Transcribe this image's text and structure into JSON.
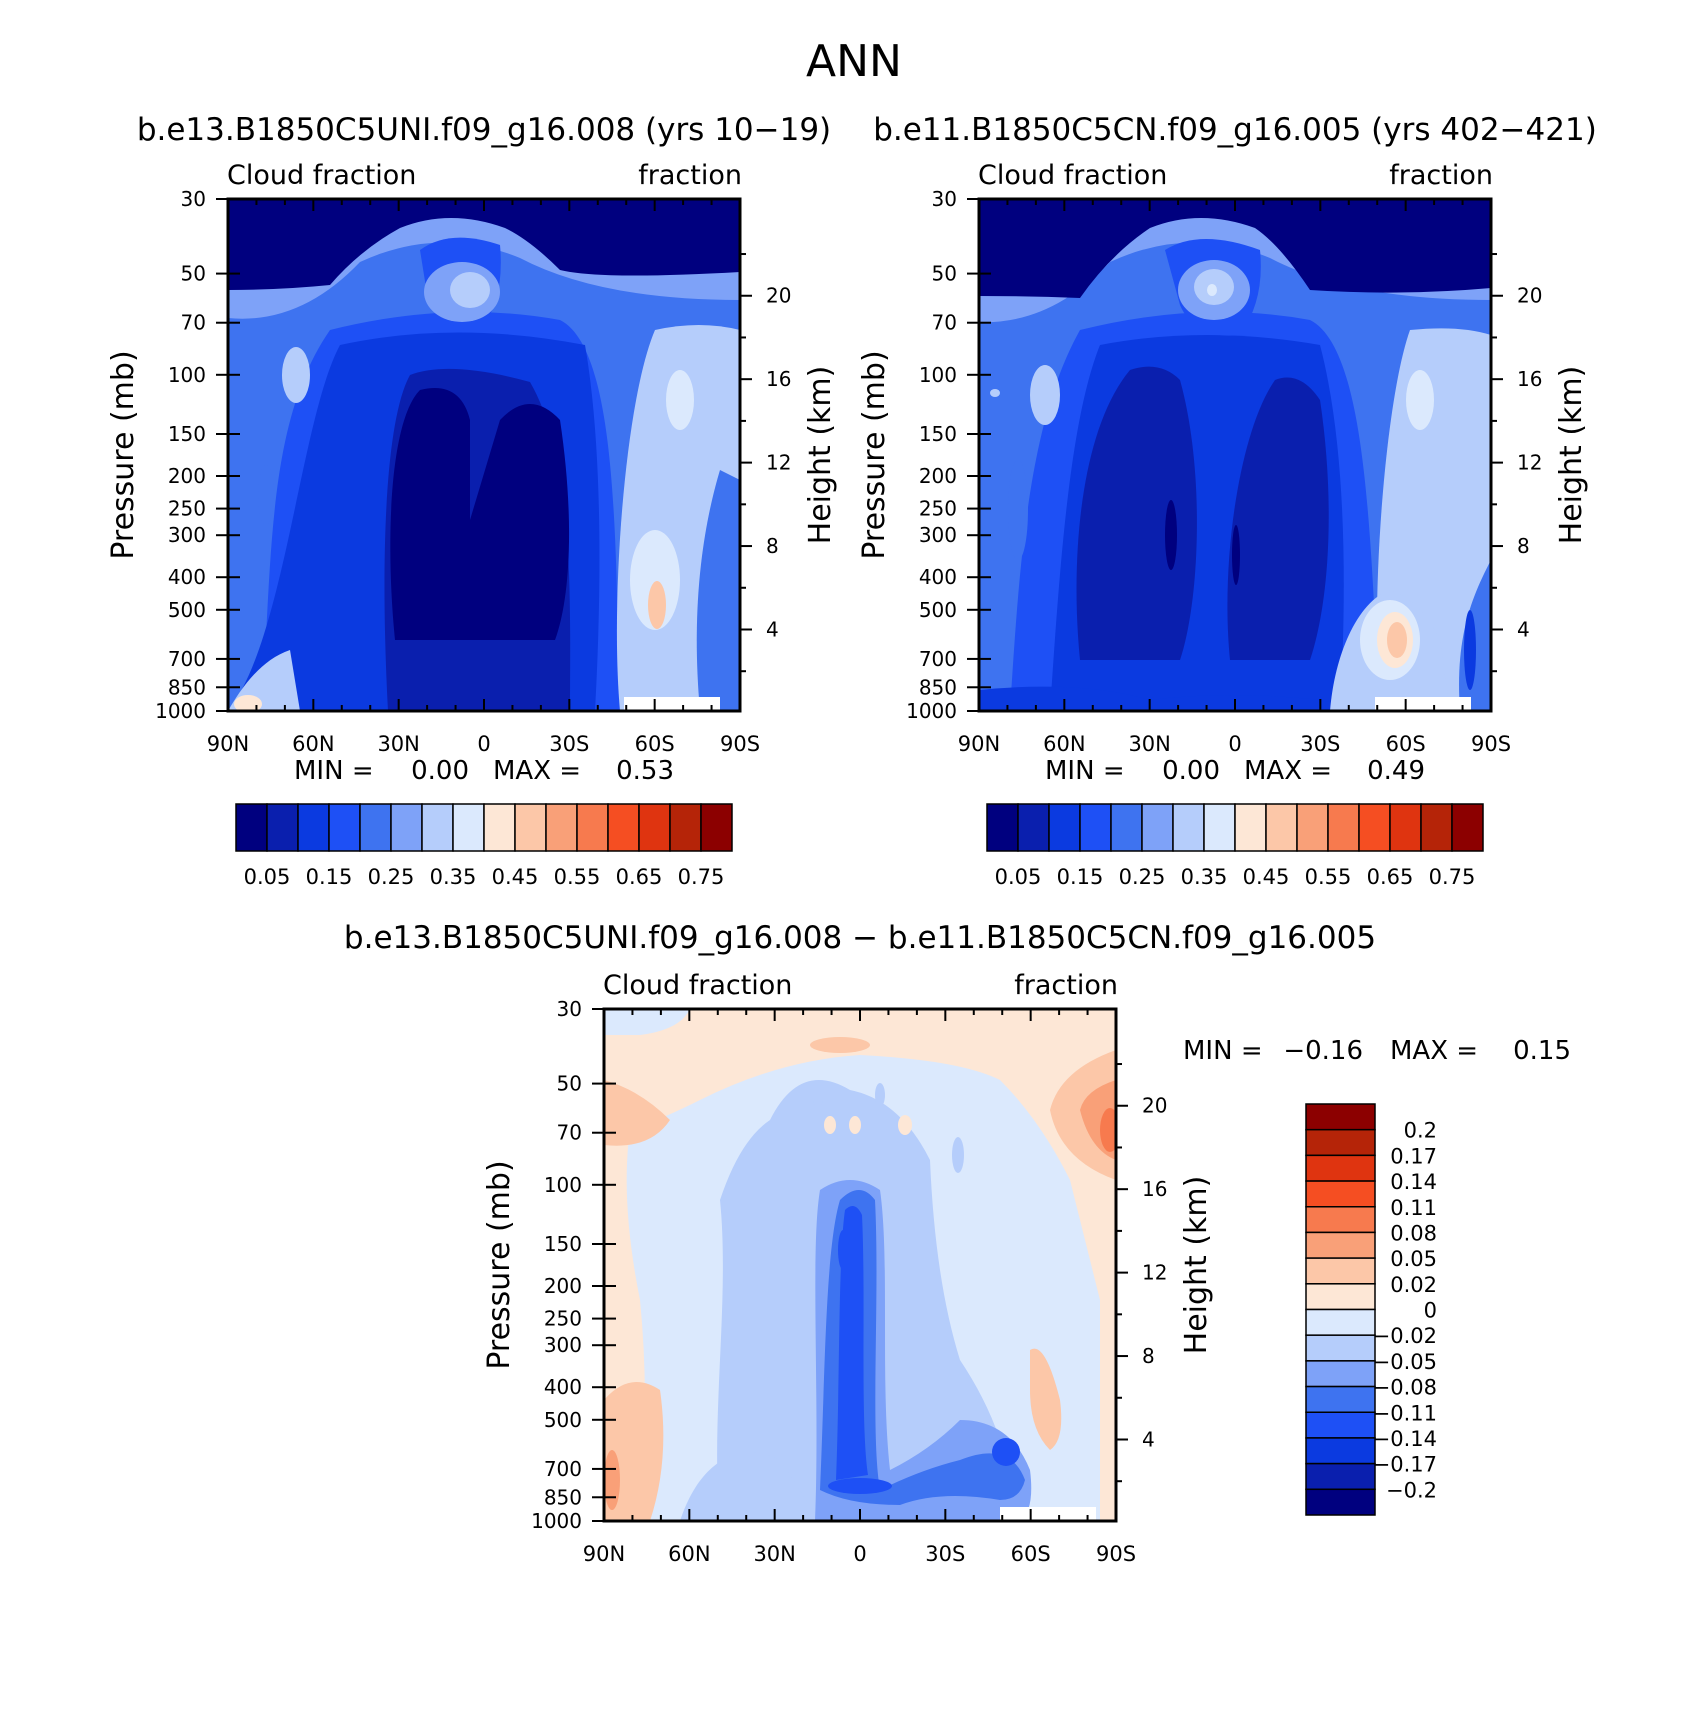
{
  "figure_title": "ANN",
  "chart_data": [
    {
      "type": "heatmap",
      "title": "b.e13.B1850C5UNI.f09_g16.008 (yrs 10-19)",
      "left_label": "Cloud fraction",
      "right_label": "fraction",
      "ylabel": "Pressure (mb)",
      "ylabel_right": "Height (km)",
      "x_ticks": [
        "90N",
        "60N",
        "30N",
        "0",
        "30S",
        "60S",
        "90S"
      ],
      "y_ticks": [
        "30",
        "50",
        "70",
        "100",
        "150",
        "200",
        "250",
        "300",
        "400",
        "500",
        "700",
        "850",
        "1000"
      ],
      "height_ticks": [
        "20",
        "16",
        "12",
        "8",
        "4"
      ],
      "min_label": "MIN =",
      "min": "0.00",
      "max_label": "MAX =",
      "max": "0.53",
      "colorbar_labels": [
        "0.05",
        "0.15",
        "0.25",
        "0.35",
        "0.45",
        "0.55",
        "0.65",
        "0.75"
      ]
    },
    {
      "type": "heatmap",
      "title": "b.e11.B1850C5CN.f09_g16.005 (yrs 402-421)",
      "left_label": "Cloud fraction",
      "right_label": "fraction",
      "ylabel": "Pressure (mb)",
      "ylabel_right": "Height (km)",
      "x_ticks": [
        "90N",
        "60N",
        "30N",
        "0",
        "30S",
        "60S",
        "90S"
      ],
      "y_ticks": [
        "30",
        "50",
        "70",
        "100",
        "150",
        "200",
        "250",
        "300",
        "400",
        "500",
        "700",
        "850",
        "1000"
      ],
      "height_ticks": [
        "20",
        "16",
        "12",
        "8",
        "4"
      ],
      "min_label": "MIN =",
      "min": "0.00",
      "max_label": "MAX =",
      "max": "0.49",
      "colorbar_labels": [
        "0.05",
        "0.15",
        "0.25",
        "0.35",
        "0.45",
        "0.55",
        "0.65",
        "0.75"
      ]
    },
    {
      "type": "heatmap",
      "title": "b.e13.B1850C5UNI.f09_g16.008 - b.e11.B1850C5CN.f09_g16.005",
      "left_label": "Cloud fraction",
      "right_label": "fraction",
      "ylabel": "Pressure (mb)",
      "ylabel_right": "Height (km)",
      "x_ticks": [
        "90N",
        "60N",
        "30N",
        "0",
        "30S",
        "60S",
        "90S"
      ],
      "y_ticks": [
        "30",
        "50",
        "70",
        "100",
        "150",
        "200",
        "250",
        "300",
        "400",
        "500",
        "700",
        "850",
        "1000"
      ],
      "height_ticks": [
        "20",
        "16",
        "12",
        "8",
        "4"
      ],
      "min_label": "MIN =",
      "min": "-0.16",
      "max_label": "MAX =",
      "max": "0.15",
      "colorbar_labels": [
        "0.2",
        "0.17",
        "0.14",
        "0.11",
        "0.08",
        "0.05",
        "0.02",
        "0",
        "-0.02",
        "-0.05",
        "-0.08",
        "-0.11",
        "-0.14",
        "-0.17",
        "-0.2"
      ]
    }
  ],
  "palette": [
    "#00007f",
    "#0a1fae",
    "#0b3ae0",
    "#1e50f5",
    "#3e73f0",
    "#7ea2f8",
    "#b5cdfb",
    "#dbe9fd",
    "#fde7d6",
    "#fcc7a8",
    "#f9a078",
    "#f77a4e",
    "#f54e22",
    "#df3410",
    "#b52408",
    "#8c0000"
  ]
}
